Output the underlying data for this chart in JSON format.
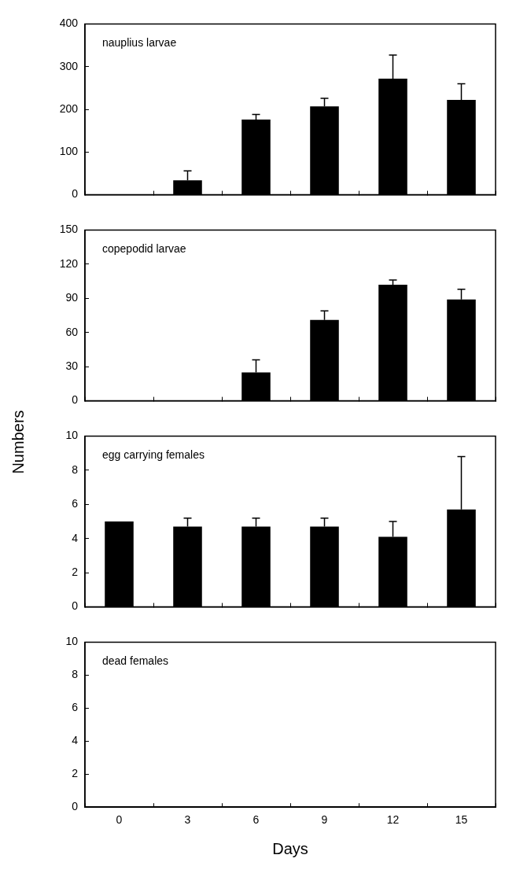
{
  "chart_data": [
    {
      "type": "bar",
      "title": "nauplius larvae",
      "categories": [
        "0",
        "3",
        "6",
        "9",
        "12",
        "15"
      ],
      "values": [
        0,
        34,
        176,
        207,
        272,
        222
      ],
      "errors": [
        null,
        [
          34,
          56
        ],
        [
          176,
          188
        ],
        [
          207,
          226
        ],
        [
          272,
          327
        ],
        [
          222,
          260
        ]
      ],
      "color": "#000000",
      "ylim": [
        0,
        400
      ],
      "yticks": [
        0,
        100,
        200,
        300,
        400
      ],
      "grid": false,
      "tick_labels": "y"
    },
    {
      "type": "bar",
      "title": "copepodid larvae",
      "categories": [
        "0",
        "3",
        "6",
        "9",
        "12",
        "15"
      ],
      "values": [
        0,
        0,
        25,
        71,
        102,
        89
      ],
      "errors": [
        null,
        null,
        [
          25,
          36
        ],
        [
          71,
          79
        ],
        [
          102,
          106
        ],
        [
          89,
          98
        ]
      ],
      "color": "#000000",
      "ylim": [
        0,
        150
      ],
      "yticks": [
        0,
        30,
        60,
        90,
        120,
        150
      ],
      "grid": false,
      "tick_labels": "y"
    },
    {
      "type": "bar",
      "title": "egg carrying females",
      "ylabel": "Numbers",
      "categories": [
        "0",
        "3",
        "6",
        "9",
        "12",
        "15"
      ],
      "values": [
        5,
        4.7,
        4.7,
        4.7,
        4.1,
        5.7
      ],
      "errors": [
        null,
        [
          4.7,
          5.2
        ],
        [
          4.7,
          5.2
        ],
        [
          4.7,
          5.2
        ],
        [
          4.1,
          5
        ],
        [
          5.7,
          8.8
        ]
      ],
      "color": "#000000",
      "ylim": [
        0,
        10
      ],
      "yticks": [
        0,
        2,
        4,
        6,
        8,
        10
      ],
      "grid": false,
      "tick_labels": "y"
    },
    {
      "type": "bar",
      "title": "dead females",
      "xlabel": "Days",
      "categories": [
        "0",
        "3",
        "6",
        "9",
        "12",
        "15"
      ],
      "values": [
        0,
        0,
        0,
        0,
        0,
        0
      ],
      "color": "#000000",
      "ylim": [
        0,
        10
      ],
      "yticks": [
        0,
        2,
        4,
        6,
        8,
        10
      ],
      "grid": false
    }
  ]
}
